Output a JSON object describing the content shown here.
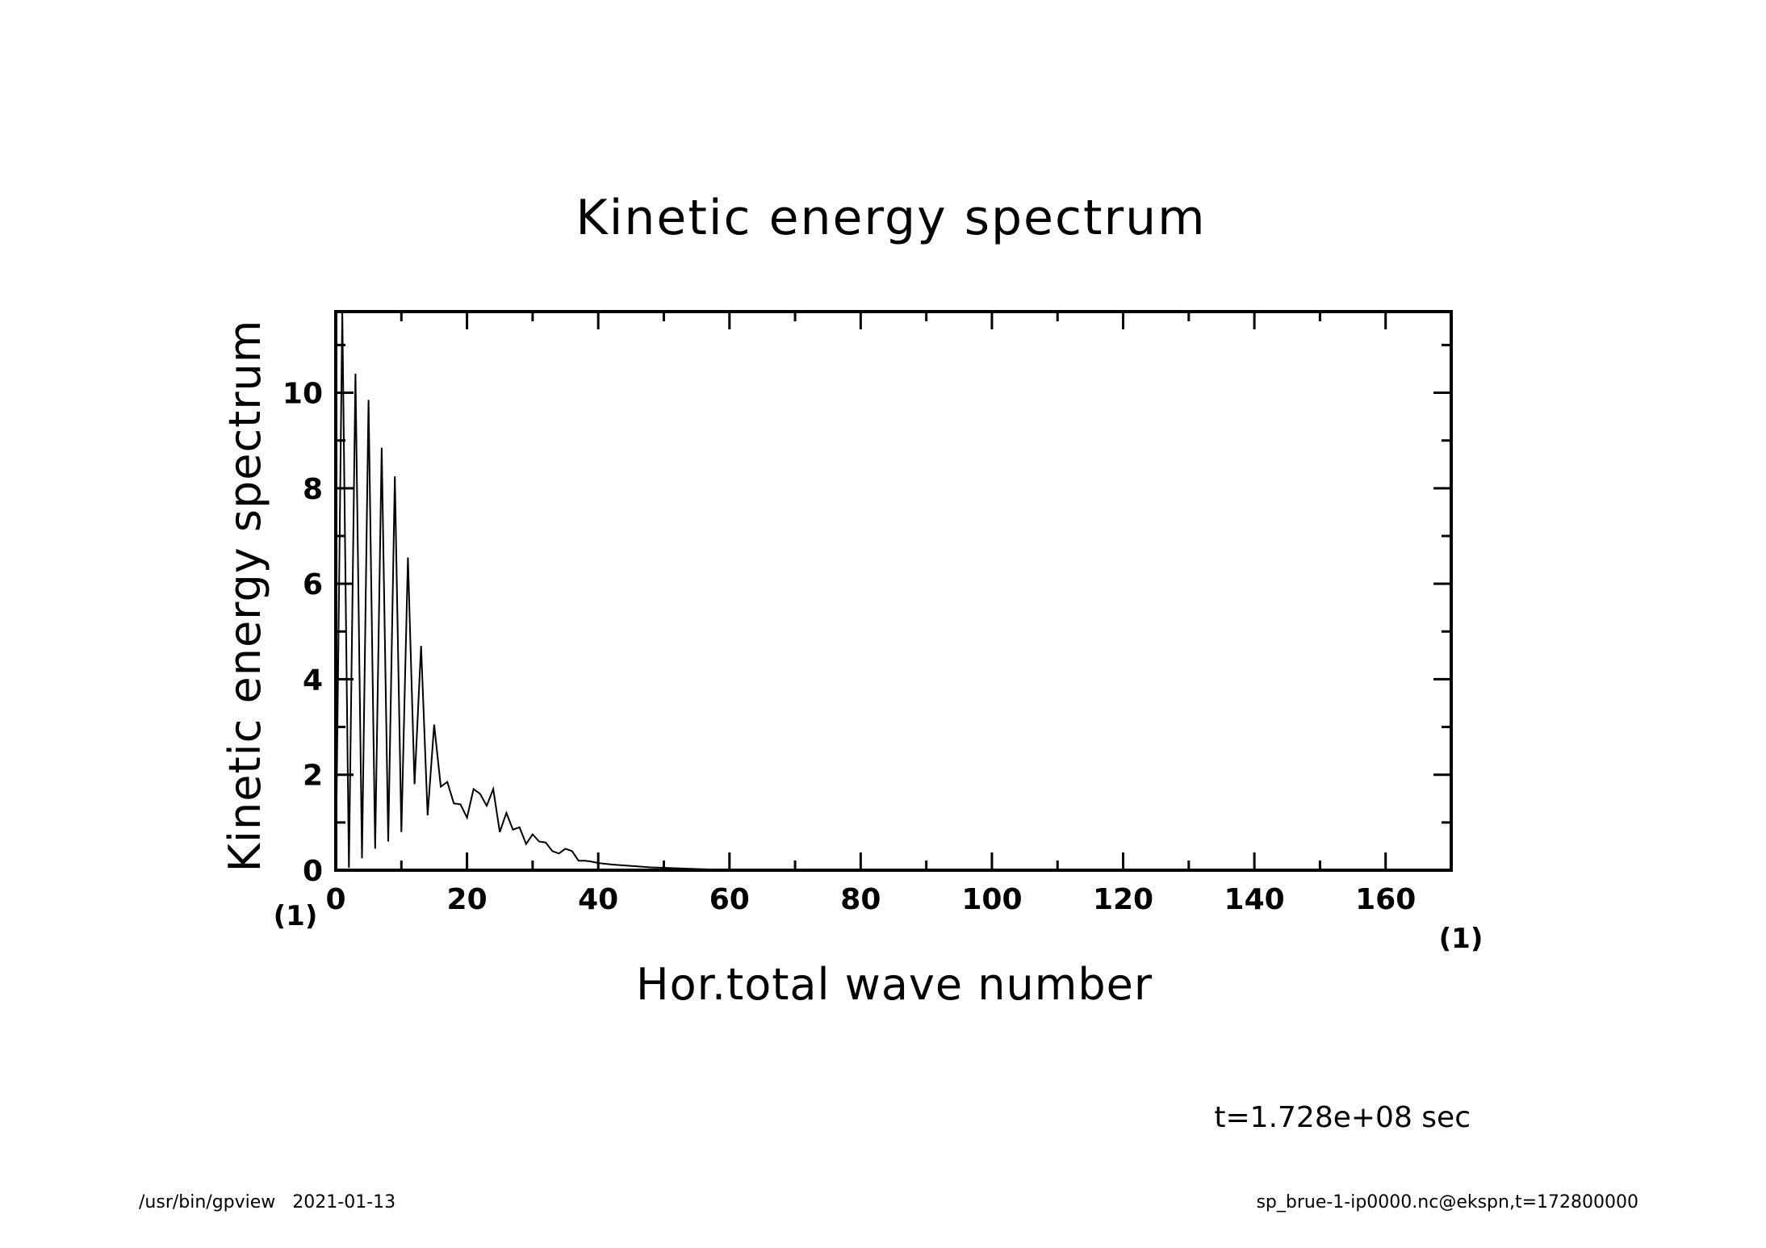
{
  "chart_data": {
    "type": "line",
    "title": "Kinetic energy spectrum",
    "xlabel": "Hor.total wave number",
    "ylabel": "Kinetic energy spectrum",
    "xlim": [
      0,
      170
    ],
    "ylim": [
      0,
      11.7
    ],
    "x_ticks": [
      0,
      20,
      40,
      60,
      80,
      100,
      120,
      140,
      160
    ],
    "y_ticks": [
      0,
      2,
      4,
      6,
      8,
      10
    ],
    "x_minor_step": 10,
    "y_minor_step": 1,
    "x_unit": "(1)",
    "y_unit": "(1)",
    "grid": false,
    "series": [
      {
        "name": "Kinetic energy spectrum",
        "x": [
          0,
          1,
          2,
          3,
          4,
          5,
          6,
          7,
          8,
          9,
          10,
          11,
          12,
          13,
          14,
          15,
          16,
          17,
          18,
          19,
          20,
          21,
          22,
          23,
          24,
          25,
          26,
          27,
          28,
          29,
          30,
          31,
          32,
          33,
          34,
          35,
          36,
          37,
          38,
          39,
          40,
          42,
          44,
          46,
          48,
          50,
          52,
          54,
          56,
          58,
          60,
          65,
          70,
          80,
          100,
          120,
          140,
          160,
          170
        ],
        "values": [
          0.05,
          11.7,
          0.05,
          10.4,
          0.25,
          9.85,
          0.45,
          8.85,
          0.6,
          8.25,
          0.8,
          6.55,
          1.8,
          4.7,
          1.15,
          3.05,
          1.75,
          1.85,
          1.4,
          1.38,
          1.1,
          1.7,
          1.6,
          1.35,
          1.7,
          0.8,
          1.2,
          0.85,
          0.9,
          0.55,
          0.75,
          0.6,
          0.58,
          0.4,
          0.35,
          0.45,
          0.4,
          0.2,
          0.2,
          0.18,
          0.15,
          0.12,
          0.1,
          0.08,
          0.06,
          0.05,
          0.04,
          0.03,
          0.02,
          0.01,
          0.005,
          0.003,
          0.002,
          0.001,
          0,
          0,
          0,
          0,
          0
        ]
      }
    ]
  },
  "annotation": {
    "time": "t=1.728e+08 sec"
  },
  "footer": {
    "left": "/usr/bin/gpview   2021-01-13",
    "right": "sp_brue-1-ip0000.nc@ekspn,t=172800000"
  },
  "colors": {
    "line": "#000000",
    "background": "#ffffff"
  }
}
